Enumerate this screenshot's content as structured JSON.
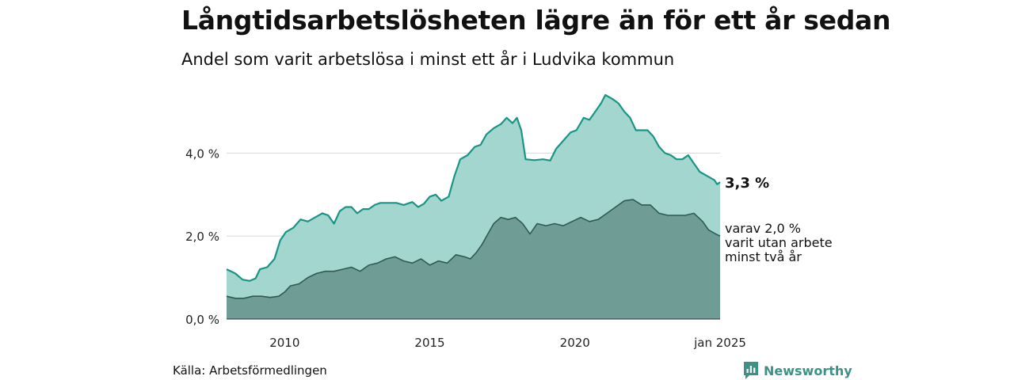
{
  "header": {
    "title": "Långtidsarbetslösheten lägre än för ett år sedan",
    "subtitle": "Andel som varit arbetslösa i minst ett år i Ludvika kommun"
  },
  "footer": {
    "source": "Källa: Arbetsförmedlingen",
    "brand": "Newsworthy"
  },
  "colors": {
    "total_line": "#1a9486",
    "total_fill": "#a3d6cf",
    "longterm_line": "#2f5a55",
    "longterm_fill": "#6f9d96",
    "grid": "#d8d8d8",
    "brand": "#3c9287"
  },
  "chart_data": {
    "type": "area",
    "ylim": [
      0,
      5.4
    ],
    "y_ticks": [
      {
        "value": 0,
        "label": "0,0 %"
      },
      {
        "value": 2,
        "label": "2,0 %"
      },
      {
        "value": 4,
        "label": "4,0 %"
      }
    ],
    "x_ticks": [
      {
        "value": 2010,
        "label": "2010"
      },
      {
        "value": 2015,
        "label": "2015"
      },
      {
        "value": 2020,
        "label": "2020"
      },
      {
        "value": 2025,
        "label": "jan 2025"
      }
    ],
    "xlim": [
      2008.0,
      2025.0
    ],
    "grid": true,
    "series": [
      {
        "key": "total",
        "end_label": "3,3 %",
        "points": [
          [
            2008.0,
            1.2
          ],
          [
            2008.3,
            1.1
          ],
          [
            2008.55,
            0.95
          ],
          [
            2008.8,
            0.92
          ],
          [
            2009.0,
            0.98
          ],
          [
            2009.15,
            1.2
          ],
          [
            2009.4,
            1.25
          ],
          [
            2009.65,
            1.45
          ],
          [
            2009.85,
            1.9
          ],
          [
            2010.05,
            2.1
          ],
          [
            2010.3,
            2.2
          ],
          [
            2010.55,
            2.4
          ],
          [
            2010.8,
            2.35
          ],
          [
            2011.05,
            2.45
          ],
          [
            2011.3,
            2.55
          ],
          [
            2011.5,
            2.5
          ],
          [
            2011.7,
            2.3
          ],
          [
            2011.9,
            2.6
          ],
          [
            2012.1,
            2.7
          ],
          [
            2012.3,
            2.7
          ],
          [
            2012.5,
            2.55
          ],
          [
            2012.7,
            2.65
          ],
          [
            2012.9,
            2.65
          ],
          [
            2013.1,
            2.75
          ],
          [
            2013.3,
            2.8
          ],
          [
            2013.6,
            2.8
          ],
          [
            2013.85,
            2.8
          ],
          [
            2014.1,
            2.75
          ],
          [
            2014.4,
            2.82
          ],
          [
            2014.6,
            2.7
          ],
          [
            2014.8,
            2.78
          ],
          [
            2015.0,
            2.95
          ],
          [
            2015.2,
            3.0
          ],
          [
            2015.4,
            2.85
          ],
          [
            2015.65,
            2.95
          ],
          [
            2015.85,
            3.45
          ],
          [
            2016.05,
            3.85
          ],
          [
            2016.3,
            3.95
          ],
          [
            2016.55,
            4.15
          ],
          [
            2016.75,
            4.2
          ],
          [
            2016.95,
            4.45
          ],
          [
            2017.2,
            4.6
          ],
          [
            2017.45,
            4.7
          ],
          [
            2017.65,
            4.85
          ],
          [
            2017.85,
            4.72
          ],
          [
            2018.0,
            4.85
          ],
          [
            2018.15,
            4.55
          ],
          [
            2018.3,
            3.85
          ],
          [
            2018.6,
            3.83
          ],
          [
            2018.9,
            3.85
          ],
          [
            2019.15,
            3.82
          ],
          [
            2019.35,
            4.1
          ],
          [
            2019.6,
            4.3
          ],
          [
            2019.85,
            4.5
          ],
          [
            2020.05,
            4.55
          ],
          [
            2020.3,
            4.85
          ],
          [
            2020.5,
            4.8
          ],
          [
            2020.7,
            5.0
          ],
          [
            2020.9,
            5.2
          ],
          [
            2021.05,
            5.4
          ],
          [
            2021.3,
            5.3
          ],
          [
            2021.5,
            5.2
          ],
          [
            2021.7,
            5.0
          ],
          [
            2021.9,
            4.85
          ],
          [
            2022.1,
            4.55
          ],
          [
            2022.3,
            4.55
          ],
          [
            2022.5,
            4.55
          ],
          [
            2022.7,
            4.4
          ],
          [
            2022.9,
            4.15
          ],
          [
            2023.1,
            4.0
          ],
          [
            2023.3,
            3.95
          ],
          [
            2023.5,
            3.85
          ],
          [
            2023.7,
            3.85
          ],
          [
            2023.9,
            3.95
          ],
          [
            2024.1,
            3.75
          ],
          [
            2024.3,
            3.55
          ],
          [
            2024.55,
            3.45
          ],
          [
            2024.8,
            3.35
          ],
          [
            2024.9,
            3.25
          ],
          [
            2025.0,
            3.3
          ]
        ]
      },
      {
        "key": "longterm",
        "end_label": [
          "varav 2,0 %",
          "varit utan arbete",
          "minst två år"
        ],
        "points": [
          [
            2008.0,
            0.55
          ],
          [
            2008.3,
            0.5
          ],
          [
            2008.6,
            0.5
          ],
          [
            2008.9,
            0.55
          ],
          [
            2009.2,
            0.55
          ],
          [
            2009.5,
            0.52
          ],
          [
            2009.8,
            0.55
          ],
          [
            2010.0,
            0.65
          ],
          [
            2010.2,
            0.8
          ],
          [
            2010.5,
            0.85
          ],
          [
            2010.8,
            1.0
          ],
          [
            2011.1,
            1.1
          ],
          [
            2011.4,
            1.15
          ],
          [
            2011.7,
            1.15
          ],
          [
            2012.0,
            1.2
          ],
          [
            2012.3,
            1.25
          ],
          [
            2012.6,
            1.15
          ],
          [
            2012.9,
            1.3
          ],
          [
            2013.2,
            1.35
          ],
          [
            2013.5,
            1.45
          ],
          [
            2013.8,
            1.5
          ],
          [
            2014.1,
            1.4
          ],
          [
            2014.4,
            1.35
          ],
          [
            2014.7,
            1.45
          ],
          [
            2015.0,
            1.3
          ],
          [
            2015.3,
            1.4
          ],
          [
            2015.6,
            1.35
          ],
          [
            2015.9,
            1.55
          ],
          [
            2016.2,
            1.5
          ],
          [
            2016.4,
            1.45
          ],
          [
            2016.6,
            1.6
          ],
          [
            2016.8,
            1.8
          ],
          [
            2017.0,
            2.05
          ],
          [
            2017.2,
            2.3
          ],
          [
            2017.45,
            2.45
          ],
          [
            2017.7,
            2.4
          ],
          [
            2017.95,
            2.45
          ],
          [
            2018.2,
            2.3
          ],
          [
            2018.45,
            2.05
          ],
          [
            2018.7,
            2.3
          ],
          [
            2019.0,
            2.25
          ],
          [
            2019.3,
            2.3
          ],
          [
            2019.6,
            2.25
          ],
          [
            2019.9,
            2.35
          ],
          [
            2020.2,
            2.45
          ],
          [
            2020.5,
            2.35
          ],
          [
            2020.8,
            2.4
          ],
          [
            2021.1,
            2.55
          ],
          [
            2021.4,
            2.7
          ],
          [
            2021.7,
            2.85
          ],
          [
            2022.0,
            2.88
          ],
          [
            2022.3,
            2.75
          ],
          [
            2022.6,
            2.75
          ],
          [
            2022.9,
            2.55
          ],
          [
            2023.2,
            2.5
          ],
          [
            2023.5,
            2.5
          ],
          [
            2023.8,
            2.5
          ],
          [
            2024.1,
            2.55
          ],
          [
            2024.4,
            2.35
          ],
          [
            2024.6,
            2.15
          ],
          [
            2024.85,
            2.05
          ],
          [
            2025.0,
            2.0
          ]
        ]
      }
    ]
  }
}
